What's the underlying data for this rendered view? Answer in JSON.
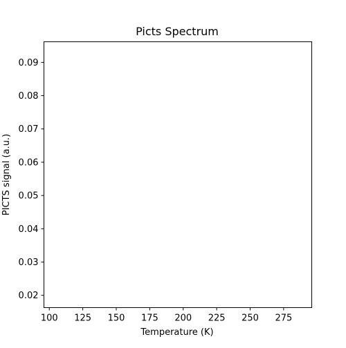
{
  "chart_data": {
    "type": "line",
    "title": "Picts Spectrum",
    "xlabel": "Temperature (K)",
    "ylabel": "PICTS signal (a.u.)",
    "xlim": [
      96,
      296
    ],
    "ylim": [
      0.0163,
      0.0962
    ],
    "xticks": [
      100,
      125,
      150,
      175,
      200,
      225,
      250,
      275
    ],
    "yticks": [
      0.02,
      0.03,
      0.04,
      0.05,
      0.06,
      0.07,
      0.08,
      0.09
    ],
    "series": [],
    "grid": false,
    "legend": "none"
  }
}
